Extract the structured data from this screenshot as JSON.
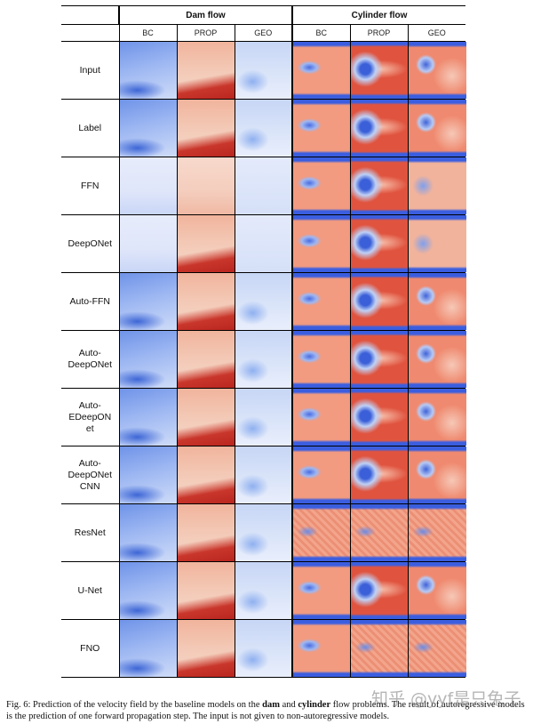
{
  "figure": {
    "groups": [
      "Dam flow",
      "Cylinder flow"
    ],
    "columns": [
      "BC",
      "PROP",
      "GEO",
      "BC",
      "PROP",
      "GEO"
    ],
    "rows": [
      {
        "label": "Input"
      },
      {
        "label": "Label"
      },
      {
        "label": "FFN"
      },
      {
        "label": "DeepONet"
      },
      {
        "label": "Auto-FFN"
      },
      {
        "label": "Auto-\nDeepONet"
      },
      {
        "label": "Auto-\nEDeepON\net"
      },
      {
        "label": "Auto-\nDeepONet\nCNN"
      },
      {
        "label": "ResNet"
      },
      {
        "label": "U-Net"
      },
      {
        "label": "FNO"
      }
    ]
  },
  "caption": {
    "prefix": "Fig. 6: Prediction of the velocity field by the baseline models on the ",
    "bold1": "dam",
    "mid": " and ",
    "bold2": "cylinder",
    "suffix": " flow problems. The result of autoregressive models is the prediction of one forward propagation step. The input is not given to non-autoregressive models."
  },
  "watermark": "知乎 @yyf是只兔子"
}
